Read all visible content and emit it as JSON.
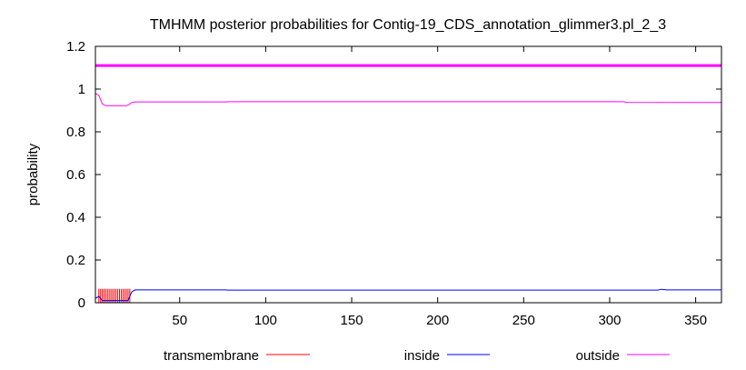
{
  "chart_data": {
    "type": "line",
    "title": "TMHMM posterior probabilities for Contig-19_CDS_annotation_glimmer3.pl_2_3",
    "xlabel": "",
    "ylabel": "probability",
    "xlim": [
      1,
      365
    ],
    "ylim": [
      0,
      1.2
    ],
    "x_ticks": [
      50,
      100,
      150,
      200,
      250,
      300,
      350
    ],
    "y_ticks": [
      0,
      0.2,
      0.4,
      0.6,
      0.8,
      1,
      1.2
    ],
    "y_tick_labels": [
      "0",
      "0.2",
      "0.4",
      "0.6",
      "0.8",
      "1",
      "1.2"
    ],
    "grid": false,
    "legend_position": "bottom",
    "topology_bar": {
      "label": "outside",
      "y": 1.11,
      "x_start": 1,
      "x_end": 365,
      "color": "#ff00ff"
    },
    "series": [
      {
        "name": "transmembrane",
        "color": "#ff0000",
        "style": "spikes",
        "spikes": {
          "x_start": 3,
          "x_end": 21,
          "step": 1,
          "height": 0.065
        }
      },
      {
        "name": "inside",
        "color": "#0000ff",
        "points": [
          [
            1,
            0.02
          ],
          [
            3,
            0.03
          ],
          [
            5,
            0.01
          ],
          [
            20,
            0.01
          ],
          [
            21,
            0.03
          ],
          [
            22,
            0.05
          ],
          [
            24,
            0.06
          ],
          [
            77,
            0.06
          ],
          [
            78,
            0.059
          ],
          [
            328,
            0.059
          ],
          [
            330,
            0.063
          ],
          [
            333,
            0.06
          ],
          [
            365,
            0.06
          ]
        ]
      },
      {
        "name": "outside",
        "color": "#ff00ff",
        "points": [
          [
            1,
            0.98
          ],
          [
            3,
            0.97
          ],
          [
            5,
            0.93
          ],
          [
            7,
            0.922
          ],
          [
            19,
            0.922
          ],
          [
            21,
            0.93
          ],
          [
            22,
            0.937
          ],
          [
            24,
            0.94
          ],
          [
            77,
            0.94
          ],
          [
            78,
            0.941
          ],
          [
            308,
            0.941
          ],
          [
            310,
            0.938
          ],
          [
            365,
            0.937
          ]
        ]
      }
    ]
  }
}
